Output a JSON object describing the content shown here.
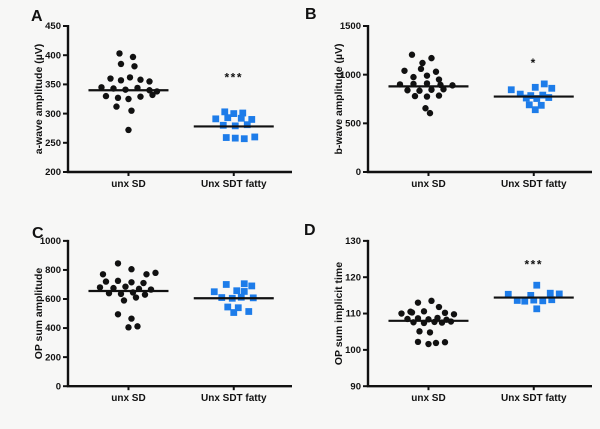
{
  "figure": {
    "background": "#f7f7f6",
    "colors": {
      "group1": "#111111",
      "group2": "#1d7ce9"
    }
  },
  "chart_data": [
    {
      "panel": "A",
      "type": "scatter",
      "ylabel": "a-wave amplitude (µV)",
      "ylim": [
        200,
        450
      ],
      "yticks": [
        200,
        250,
        300,
        350,
        400,
        450
      ],
      "categories": [
        "unx SD",
        "Unx SDT fatty"
      ],
      "significance": {
        "text": "***",
        "category_index": 1,
        "value": 362
      },
      "series": [
        {
          "name": "unx SD",
          "marker": "circle",
          "color": "#111111",
          "mean": 340,
          "points": [
            [
              -0.3,
              403
            ],
            [
              0.15,
              397
            ],
            [
              -0.25,
              385
            ],
            [
              0.2,
              381
            ],
            [
              -0.6,
              360
            ],
            [
              -0.25,
              357
            ],
            [
              0.05,
              362
            ],
            [
              0.4,
              358
            ],
            [
              0.7,
              355
            ],
            [
              -0.9,
              345
            ],
            [
              -0.5,
              343
            ],
            [
              -0.1,
              341
            ],
            [
              0.3,
              344
            ],
            [
              0.7,
              340
            ],
            [
              0.95,
              338
            ],
            [
              -0.75,
              330
            ],
            [
              -0.35,
              327
            ],
            [
              0,
              325
            ],
            [
              0.4,
              329
            ],
            [
              0.8,
              332
            ],
            [
              -0.4,
              312
            ],
            [
              0.1,
              305
            ],
            [
              0,
              272
            ]
          ]
        },
        {
          "name": "Unx SDT fatty",
          "marker": "square",
          "color": "#1d7ce9",
          "mean": 278,
          "points": [
            [
              -0.3,
              303
            ],
            [
              0,
              300
            ],
            [
              0.3,
              301
            ],
            [
              -0.6,
              291
            ],
            [
              -0.2,
              293
            ],
            [
              0.25,
              292
            ],
            [
              0.6,
              290
            ],
            [
              -0.35,
              280
            ],
            [
              0.05,
              279
            ],
            [
              0.45,
              281
            ],
            [
              -0.25,
              259
            ],
            [
              0.05,
              258
            ],
            [
              0.35,
              257
            ],
            [
              0.7,
              260
            ]
          ]
        }
      ]
    },
    {
      "panel": "B",
      "type": "scatter",
      "ylabel": "b-wave amplitude (µV)",
      "ylim": [
        0,
        1500
      ],
      "yticks": [
        0,
        500,
        1000,
        1500
      ],
      "categories": [
        "unx SD",
        "Unx SDT fatty"
      ],
      "significance": {
        "text": "*",
        "category_index": 1,
        "value": 1120
      },
      "series": [
        {
          "name": "unx SD",
          "marker": "circle",
          "color": "#111111",
          "mean": 880,
          "points": [
            [
              -0.55,
              1205
            ],
            [
              0.1,
              1170
            ],
            [
              -0.2,
              1120
            ],
            [
              -0.8,
              1040
            ],
            [
              -0.25,
              1060
            ],
            [
              0.25,
              1030
            ],
            [
              -0.5,
              975
            ],
            [
              -0.05,
              990
            ],
            [
              0.35,
              950
            ],
            [
              -0.95,
              900
            ],
            [
              -0.5,
              905
            ],
            [
              -0.05,
              910
            ],
            [
              0.4,
              895
            ],
            [
              0.8,
              890
            ],
            [
              -0.7,
              840
            ],
            [
              -0.3,
              835
            ],
            [
              0.1,
              845
            ],
            [
              0.5,
              850
            ],
            [
              -0.45,
              780
            ],
            [
              -0.05,
              775
            ],
            [
              0.35,
              785
            ],
            [
              -0.1,
              655
            ],
            [
              0.05,
              605
            ]
          ]
        },
        {
          "name": "Unx SDT fatty",
          "marker": "square",
          "color": "#1d7ce9",
          "mean": 775,
          "points": [
            [
              0.35,
              905
            ],
            [
              -0.75,
              845
            ],
            [
              0.05,
              870
            ],
            [
              0.6,
              860
            ],
            [
              -0.45,
              800
            ],
            [
              -0.1,
              785
            ],
            [
              0.3,
              790
            ],
            [
              -0.25,
              760
            ],
            [
              0.1,
              755
            ],
            [
              0.5,
              765
            ],
            [
              -0.15,
              690
            ],
            [
              0.25,
              685
            ],
            [
              0.05,
              640
            ]
          ]
        }
      ]
    },
    {
      "panel": "C",
      "type": "scatter",
      "ylabel": "OP sum amplitude",
      "ylim": [
        0,
        1000
      ],
      "yticks": [
        0,
        200,
        400,
        600,
        800,
        1000
      ],
      "categories": [
        "unx SD",
        "Unx SDT fatty"
      ],
      "significance": null,
      "series": [
        {
          "name": "unx SD",
          "marker": "circle",
          "color": "#111111",
          "mean": 655,
          "points": [
            [
              -0.35,
              845
            ],
            [
              0.1,
              805
            ],
            [
              -0.85,
              770
            ],
            [
              0.6,
              770
            ],
            [
              0.9,
              780
            ],
            [
              -0.75,
              720
            ],
            [
              -0.35,
              725
            ],
            [
              0.1,
              715
            ],
            [
              0.5,
              710
            ],
            [
              -0.95,
              680
            ],
            [
              -0.5,
              675
            ],
            [
              -0.1,
              685
            ],
            [
              0.35,
              670
            ],
            [
              0.75,
              665
            ],
            [
              -0.65,
              640
            ],
            [
              -0.25,
              635
            ],
            [
              0.15,
              645
            ],
            [
              0.55,
              630
            ],
            [
              -0.15,
              590
            ],
            [
              0.25,
              610
            ],
            [
              -0.35,
              495
            ],
            [
              0.1,
              465
            ],
            [
              0,
              405
            ],
            [
              0.3,
              412
            ]
          ]
        },
        {
          "name": "Unx SDT fatty",
          "marker": "square",
          "color": "#1d7ce9",
          "mean": 605,
          "points": [
            [
              -0.25,
              700
            ],
            [
              0.35,
              705
            ],
            [
              0.6,
              690
            ],
            [
              -0.65,
              650
            ],
            [
              0.1,
              657
            ],
            [
              0.35,
              652
            ],
            [
              -0.4,
              610
            ],
            [
              -0.05,
              605
            ],
            [
              0.25,
              612
            ],
            [
              0.65,
              608
            ],
            [
              -0.2,
              545
            ],
            [
              0.15,
              540
            ],
            [
              0,
              507
            ],
            [
              0.5,
              514
            ]
          ]
        }
      ]
    },
    {
      "panel": "D",
      "type": "scatter",
      "ylabel": "OP sum implicit time",
      "ylim": [
        90,
        130
      ],
      "yticks": [
        90,
        100,
        110,
        120,
        130
      ],
      "categories": [
        "unx SD",
        "Unx SDT fatty"
      ],
      "significance": {
        "text": "***",
        "category_index": 1,
        "value": 123.5
      },
      "series": [
        {
          "name": "unx SD",
          "marker": "circle",
          "color": "#111111",
          "mean": 108,
          "points": [
            [
              -0.6,
              110.5
            ],
            [
              -0.35,
              113
            ],
            [
              0.1,
              113.5
            ],
            [
              0.35,
              111.8
            ],
            [
              -0.9,
              110
            ],
            [
              -0.55,
              110.3
            ],
            [
              -0.15,
              110.6
            ],
            [
              0.55,
              110.2
            ],
            [
              0.85,
              109.8
            ],
            [
              -0.7,
              108.5
            ],
            [
              -0.35,
              108.7
            ],
            [
              0,
              108.4
            ],
            [
              0.3,
              108.8
            ],
            [
              0.6,
              108.3
            ],
            [
              -0.5,
              107.6
            ],
            [
              -0.15,
              107.4
            ],
            [
              0.2,
              107.7
            ],
            [
              0.45,
              107.5
            ],
            [
              0.75,
              107.8
            ],
            [
              -0.3,
              105.1
            ],
            [
              0.05,
              104.8
            ],
            [
              -0.35,
              102.2
            ],
            [
              0,
              101.6
            ],
            [
              0.25,
              101.9
            ],
            [
              0.55,
              102.1
            ]
          ]
        },
        {
          "name": "Unx SDT fatty",
          "marker": "square",
          "color": "#1d7ce9",
          "mean": 114.4,
          "points": [
            [
              0.1,
              117.8
            ],
            [
              -0.85,
              115.3
            ],
            [
              -0.1,
              115.0
            ],
            [
              0.55,
              115.6
            ],
            [
              0.85,
              115.4
            ],
            [
              -0.55,
              113.6
            ],
            [
              -0.3,
              113.4
            ],
            [
              0,
              113.7
            ],
            [
              0.3,
              113.5
            ],
            [
              0.6,
              113.8
            ],
            [
              0.1,
              111.3
            ]
          ]
        }
      ]
    }
  ]
}
